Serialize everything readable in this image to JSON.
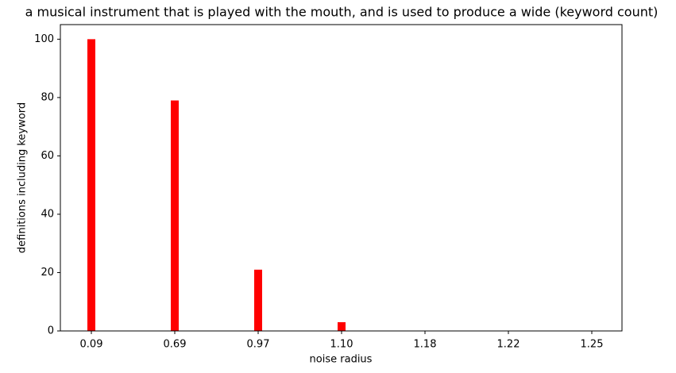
{
  "chart_data": {
    "type": "bar",
    "title": "a musical instrument that is played with the mouth, and is used to produce a wide (keyword count)",
    "x_label": "noise radius",
    "y_label": "definitions including keyword",
    "categories": [
      "0.09",
      "0.69",
      "0.97",
      "1.10",
      "1.18",
      "1.22",
      "1.25"
    ],
    "values": [
      100,
      79,
      21,
      3,
      0,
      0,
      0
    ],
    "color": "#ff0000",
    "ylim": [
      0,
      105
    ],
    "yticks": [
      0,
      20,
      40,
      60,
      80,
      100
    ],
    "grid": false
  }
}
